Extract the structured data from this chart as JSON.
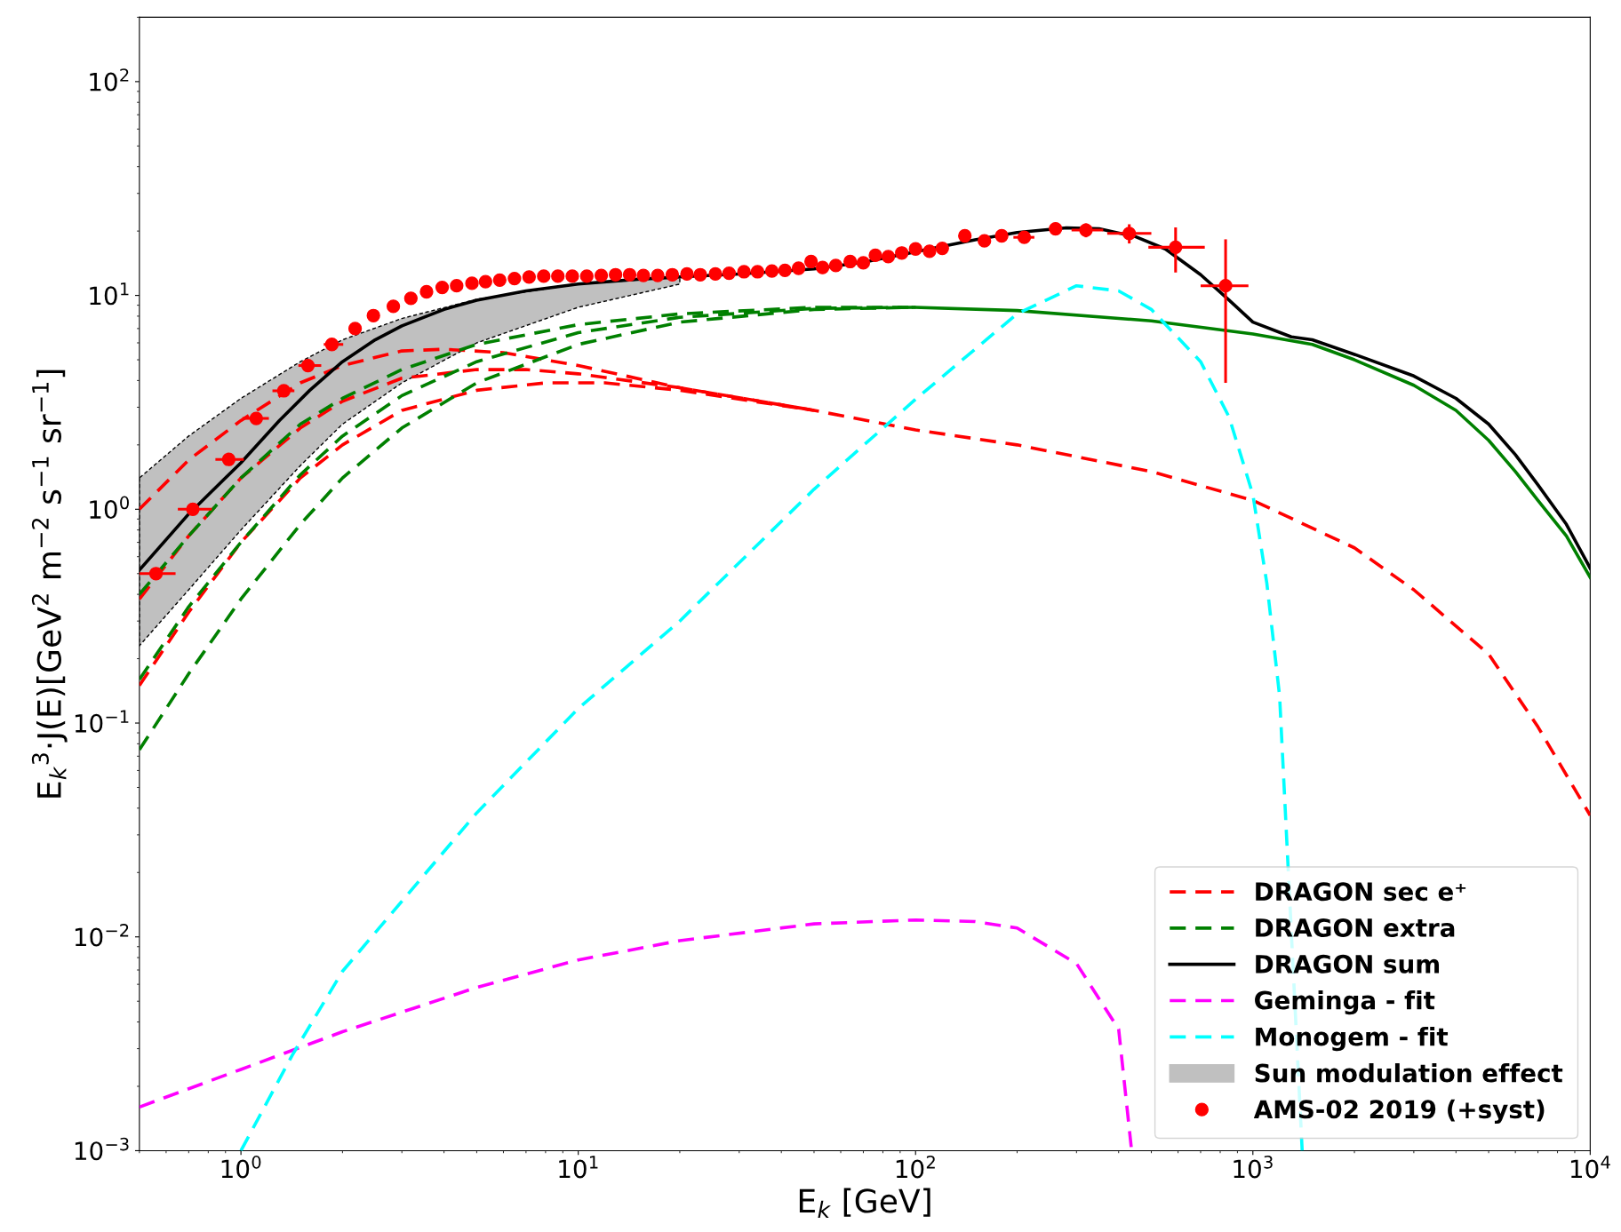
{
  "chart_data": {
    "type": "line",
    "xlabel": "E$_{k}$ [GeV]",
    "ylabel": "E$_{k}$$^{3}$·J(E)[GeV$^{2}$ m$^{−2}$ s$^{−1}$ sr$^{−1}$]",
    "log": "xy",
    "xlim": [
      0.5,
      10000
    ],
    "ylim": [
      0.001,
      200
    ],
    "xticks": [
      {
        "value": 1,
        "label": "10$^{0}$"
      },
      {
        "value": 10,
        "label": "10$^{1}$"
      },
      {
        "value": 100,
        "label": "10$^{2}$"
      },
      {
        "value": 1000,
        "label": "10$^{3}$"
      },
      {
        "value": 10000,
        "label": "10$^{4}$"
      }
    ],
    "yticks": [
      {
        "value": 0.001,
        "label": "10$^{−3}$"
      },
      {
        "value": 0.01,
        "label": "10$^{−2}$"
      },
      {
        "value": 0.1,
        "label": "10$^{−1}$"
      },
      {
        "value": 1,
        "label": "10$^{0}$"
      },
      {
        "value": 10,
        "label": "10$^{1}$"
      },
      {
        "value": 100,
        "label": "10$^{2}$"
      }
    ],
    "grid": false,
    "legend": "bottom right",
    "series": [
      {
        "name": "DRAGON sec e⁺",
        "line_style": "dashed",
        "color": "#ff0000",
        "x": [
          0.5,
          0.7,
          1,
          1.5,
          2,
          3,
          4,
          6,
          10,
          20,
          50,
          100,
          200,
          500,
          1000,
          2000,
          3000,
          5000,
          7000,
          10000
        ],
        "values": [
          1.0,
          1.7,
          2.6,
          3.9,
          4.7,
          5.5,
          5.6,
          5.4,
          4.7,
          3.7,
          2.9,
          2.35,
          2.0,
          1.5,
          1.1,
          0.66,
          0.42,
          0.21,
          0.096,
          0.037
        ]
      },
      {
        "line_style": "dashed",
        "color": "#ff0000",
        "x": [
          0.5,
          0.7,
          1,
          1.5,
          2,
          3,
          5,
          7,
          10,
          20,
          50
        ],
        "values": [
          0.38,
          0.75,
          1.4,
          2.4,
          3.2,
          4.1,
          4.5,
          4.5,
          4.3,
          3.7,
          2.9
        ]
      },
      {
        "line_style": "dashed",
        "color": "#ff0000",
        "x": [
          0.5,
          0.7,
          1,
          1.5,
          2,
          3,
          5,
          8,
          12,
          20,
          50
        ],
        "values": [
          0.15,
          0.33,
          0.7,
          1.4,
          2.0,
          2.9,
          3.6,
          3.9,
          3.9,
          3.6,
          2.9
        ]
      },
      {
        "name": "DRAGON extra",
        "line_style": "dashed",
        "color": "#008000",
        "x": [
          0.5,
          0.7,
          1,
          1.5,
          2,
          3,
          5,
          10,
          20,
          50,
          100
        ],
        "values": [
          0.4,
          0.75,
          1.4,
          2.5,
          3.3,
          4.5,
          5.9,
          7.3,
          8.2,
          8.8,
          8.8
        ]
      },
      {
        "line_style": "dashed",
        "color": "#008000",
        "x": [
          0.5,
          0.7,
          1,
          1.5,
          2,
          3,
          5,
          10,
          20,
          50,
          100
        ],
        "values": [
          0.16,
          0.35,
          0.7,
          1.45,
          2.2,
          3.4,
          4.9,
          6.7,
          7.9,
          8.7,
          8.8
        ]
      },
      {
        "line_style": "dashed",
        "color": "#008000",
        "x": [
          0.5,
          0.7,
          1,
          1.5,
          2,
          3,
          5,
          10,
          20,
          50,
          100
        ],
        "values": [
          0.075,
          0.17,
          0.38,
          0.85,
          1.4,
          2.4,
          3.9,
          5.9,
          7.5,
          8.6,
          8.8
        ]
      },
      {
        "line_style": "solid",
        "color": "#008000",
        "x": [
          100,
          200,
          500,
          1000,
          1500,
          2000,
          3000,
          4000,
          5000,
          6000,
          7000,
          8500,
          10000
        ],
        "values": [
          8.8,
          8.5,
          7.6,
          6.6,
          5.9,
          5.0,
          3.8,
          2.9,
          2.1,
          1.5,
          1.1,
          0.75,
          0.48
        ]
      },
      {
        "name": "DRAGON sum",
        "line_style": "solid",
        "color": "#000000",
        "x": [
          0.5,
          0.7,
          1,
          1.3,
          1.6,
          2,
          2.5,
          3,
          4,
          5,
          7,
          10,
          15,
          20,
          30,
          50,
          70,
          100,
          150,
          200,
          280,
          350,
          450,
          550,
          700,
          850,
          1000,
          1300,
          1500,
          2000,
          3000,
          4000,
          5000,
          6000,
          7000,
          8500,
          10000
        ],
        "values": [
          0.52,
          0.95,
          1.65,
          2.6,
          3.6,
          4.9,
          6.2,
          7.2,
          8.6,
          9.5,
          10.5,
          11.3,
          11.9,
          12.2,
          12.6,
          13.3,
          14.3,
          16,
          18.2,
          19.7,
          20.7,
          20.5,
          18.8,
          16.5,
          12.5,
          9.5,
          7.5,
          6.4,
          6.2,
          5.3,
          4.2,
          3.3,
          2.5,
          1.8,
          1.3,
          0.85,
          0.53
        ]
      },
      {
        "name": "Geminga - fit",
        "line_style": "dashed",
        "color": "#ff00ff",
        "x": [
          0.5,
          1,
          2,
          5,
          10,
          20,
          50,
          100,
          150,
          200,
          300,
          400,
          437
        ],
        "values": [
          0.0016,
          0.0024,
          0.0036,
          0.0058,
          0.0078,
          0.0096,
          0.0115,
          0.012,
          0.0118,
          0.011,
          0.0075,
          0.0037,
          0.001
        ]
      },
      {
        "name": "Monogem - fit",
        "line_style": "dashed",
        "color": "#00ffff",
        "x": [
          1.0,
          1.42,
          2,
          5,
          10,
          20,
          50,
          100,
          150,
          200,
          300,
          400,
          500,
          700,
          850,
          1000,
          1100,
          1200,
          1400
        ],
        "values": [
          0.001,
          0.0028,
          0.0069,
          0.038,
          0.117,
          0.3,
          1.24,
          3.27,
          5.6,
          8.2,
          11.1,
          10.5,
          8.6,
          4.9,
          2.7,
          1.17,
          0.45,
          0.134,
          0.001
        ]
      },
      {
        "name": "Sun modulation effect",
        "type": "line",
        "color": "#c0c0c0",
        "x": [
          0.5,
          0.7,
          1,
          1.5,
          2,
          3,
          5,
          10,
          20
        ],
        "values": [
          null,
          null,
          null,
          null,
          null,
          null,
          null,
          null,
          null
        ],
        "lower": [
          0.23,
          0.42,
          0.8,
          1.6,
          2.5,
          3.9,
          6.0,
          8.8,
          11.3
        ],
        "upper": [
          1.4,
          2.2,
          3.3,
          4.9,
          6.2,
          7.8,
          9.6,
          11.3,
          12.2
        ]
      },
      {
        "name": "AMS-02 2019 (+syst)",
        "type": "scatter",
        "marker": "circle",
        "color": "#ff0000",
        "x": [
          0.56,
          0.72,
          0.92,
          1.11,
          1.34,
          1.58,
          1.86,
          2.18,
          2.47,
          2.83,
          3.19,
          3.55,
          3.95,
          4.36,
          4.84,
          5.31,
          5.85,
          6.47,
          7.15,
          7.9,
          8.7,
          9.6,
          10.6,
          11.7,
          12.9,
          14.2,
          15.6,
          17.2,
          19,
          21,
          23,
          25.5,
          28,
          31,
          34,
          37.5,
          41,
          45,
          49,
          53,
          58,
          64,
          70,
          76,
          83,
          91,
          100,
          110,
          120,
          140,
          160,
          180,
          210,
          260,
          320,
          430,
          590,
          830
        ],
        "values": [
          0.5,
          1.0,
          1.71,
          2.66,
          3.58,
          4.7,
          5.9,
          7.0,
          8.05,
          8.9,
          9.7,
          10.4,
          10.9,
          11.1,
          11.4,
          11.6,
          11.8,
          12.0,
          12.2,
          12.3,
          12.3,
          12.3,
          12.3,
          12.4,
          12.5,
          12.5,
          12.4,
          12.4,
          12.5,
          12.6,
          12.5,
          12.6,
          12.7,
          12.9,
          12.9,
          13.0,
          13.1,
          13.4,
          14.4,
          13.5,
          13.8,
          14.4,
          14.2,
          15.4,
          15.2,
          15.8,
          16.5,
          16.1,
          16.6,
          19.0,
          18.0,
          19.0,
          18.7,
          20.5,
          20.2,
          19.5,
          16.8,
          11.1
        ],
        "errors": [
          null,
          null,
          null,
          null,
          null,
          null,
          null,
          null,
          null,
          null,
          null,
          null,
          null,
          null,
          null,
          null,
          null,
          null,
          null,
          null,
          null,
          null,
          null,
          null,
          null,
          null,
          null,
          null,
          null,
          null,
          null,
          null,
          null,
          null,
          null,
          null,
          null,
          null,
          null,
          null,
          null,
          null,
          null,
          null,
          null,
          null,
          null,
          null,
          null,
          null,
          null,
          null,
          null,
          null,
          1.5,
          2,
          4,
          7.2
        ],
        "xerrors": [
          [
            0.5,
            0.64
          ],
          [
            0.65,
            0.82
          ],
          [
            0.84,
            1.02
          ],
          [
            1.01,
            1.21
          ],
          [
            1.24,
            1.44
          ],
          [
            1.48,
            1.73
          ],
          [
            1.76,
            2.01
          ],
          null,
          null,
          null,
          null,
          null,
          null,
          null,
          null,
          null,
          null,
          null,
          null,
          null,
          null,
          null,
          null,
          null,
          null,
          null,
          null,
          null,
          null,
          null,
          null,
          null,
          null,
          null,
          null,
          null,
          null,
          null,
          null,
          null,
          null,
          null,
          null,
          null,
          null,
          null,
          null,
          null,
          null,
          null,
          null,
          null,
          [
            195,
            225
          ],
          null,
          [
            290,
            360
          ],
          [
            370,
            500
          ],
          [
            490,
            720
          ],
          [
            700,
            970
          ]
        ]
      }
    ]
  }
}
